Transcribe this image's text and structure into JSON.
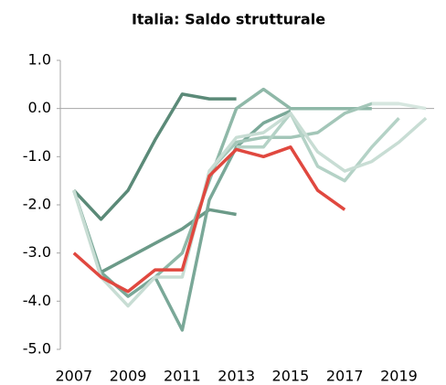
{
  "chart_data": {
    "type": "line",
    "title": "Italia: Saldo strutturale",
    "xlim": [
      2006.5,
      2020.3
    ],
    "xticks": [
      2007,
      2009,
      2011,
      2013,
      2015,
      2017,
      2019
    ],
    "ylim": [
      -5,
      1
    ],
    "yticks": [
      {
        "value": 1,
        "label": "1.0"
      },
      {
        "value": 0,
        "label": "0.0"
      },
      {
        "value": -1,
        "label": "-1.0"
      },
      {
        "value": -2,
        "label": "-2.0"
      },
      {
        "value": -3,
        "label": "-3.0"
      },
      {
        "value": -4,
        "label": "-4.0"
      },
      {
        "value": -5,
        "label": "-5.0"
      }
    ],
    "series": [
      {
        "color": "#5b8a78",
        "x": [
          2007,
          2008,
          2009,
          2010,
          2011,
          2012,
          2013
        ],
        "values": [
          -1.7,
          -2.3,
          -1.7,
          -0.65,
          0.3,
          0.2,
          0.2
        ]
      },
      {
        "color": "#6b9a88",
        "x": [
          2008,
          2009,
          2010,
          2011,
          2012,
          2013
        ],
        "values": [
          -3.4,
          -3.1,
          -2.8,
          -2.5,
          -2.1,
          -2.2
        ]
      },
      {
        "color": "#7aa898",
        "x": [
          2007,
          2008,
          2009,
          2010,
          2011,
          2012,
          2013,
          2014,
          2015
        ],
        "values": [
          -1.7,
          -3.4,
          -3.9,
          -3.5,
          -4.6,
          -1.9,
          -0.8,
          -0.3,
          -0.05
        ]
      },
      {
        "color": "#8fb8a8",
        "x": [
          2010,
          2011,
          2012,
          2013,
          2014,
          2015,
          2016,
          2017,
          2018
        ],
        "values": [
          -3.5,
          -3.0,
          -1.5,
          0.0,
          0.4,
          0.0,
          0.0,
          0.0,
          0.0
        ]
      },
      {
        "color": "#a3c6b8",
        "x": [
          2012,
          2013,
          2014,
          2015,
          2016,
          2017,
          2018,
          2019
        ],
        "values": [
          -1.3,
          -0.7,
          -0.6,
          -0.6,
          -0.5,
          -0.1,
          0.1,
          0.1
        ]
      },
      {
        "color": "#b4d2c6",
        "x": [
          2013,
          2014,
          2015,
          2016,
          2017,
          2018,
          2019
        ],
        "values": [
          -0.8,
          -0.8,
          -0.1,
          -1.2,
          -1.5,
          -0.8,
          -0.2
        ]
      },
      {
        "color": "#c8ddd4",
        "x": [
          2007,
          2008,
          2009,
          2010,
          2011,
          2012,
          2013,
          2014,
          2015,
          2016,
          2017,
          2018,
          2019,
          2020
        ],
        "values": [
          -1.7,
          -3.5,
          -4.1,
          -3.5,
          -3.5,
          -1.3,
          -0.6,
          -0.5,
          -0.1,
          -0.9,
          -1.3,
          -1.1,
          -0.7,
          -0.2
        ]
      },
      {
        "color": "#d6e6df",
        "x": [
          2018,
          2019,
          2020
        ],
        "values": [
          0.1,
          0.1,
          0.0
        ]
      },
      {
        "color": "#e0483f",
        "x": [
          2007,
          2008,
          2009,
          2010,
          2011,
          2012,
          2013,
          2014,
          2015,
          2016,
          2017
        ],
        "values": [
          -3.0,
          -3.5,
          -3.8,
          -3.35,
          -3.35,
          -1.4,
          -0.85,
          -1.0,
          -0.8,
          -1.7,
          -2.1
        ]
      }
    ]
  }
}
